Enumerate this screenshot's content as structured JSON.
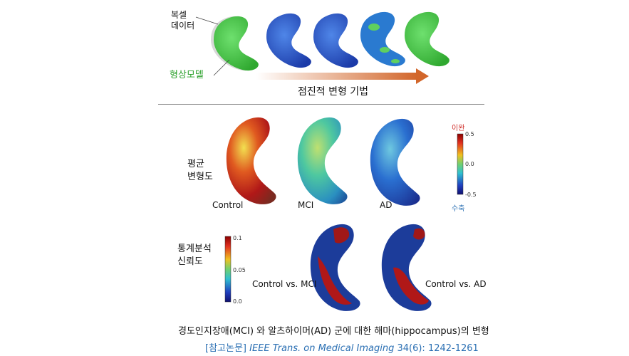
{
  "top": {
    "label_raw": "복셀\n데이터",
    "label_model": "형상모델",
    "arrow_caption": "점진적 변형 기법"
  },
  "mean_map": {
    "row_label": "평균\n변형도",
    "conditions": [
      "Control",
      "MCI",
      "AD"
    ],
    "colorbar": {
      "top_label": "이완",
      "bottom_label": "수축",
      "ticks": [
        "0.5",
        "0.0",
        "-0.5"
      ]
    }
  },
  "stat_map": {
    "row_label": "통계분석\n신뢰도",
    "comparisons": [
      "Control vs. MCI",
      "Control vs. AD"
    ],
    "colorbar": {
      "ticks": [
        "0.1",
        "0.05",
        "0.0"
      ]
    }
  },
  "caption": "경도인지장애(MCI) 와 알츠하이머(AD) 군에 대한 해마(hippocampus)의 변형",
  "reference": {
    "prefix": "[참고논문] ",
    "journal": "IEEE Trans. on Medical Imaging",
    "detail": " 34(6): 1242-1261"
  },
  "colors": {
    "green_model": "#3fc53f",
    "arrow": "#d2662a",
    "ref": "#2a6fb3"
  }
}
